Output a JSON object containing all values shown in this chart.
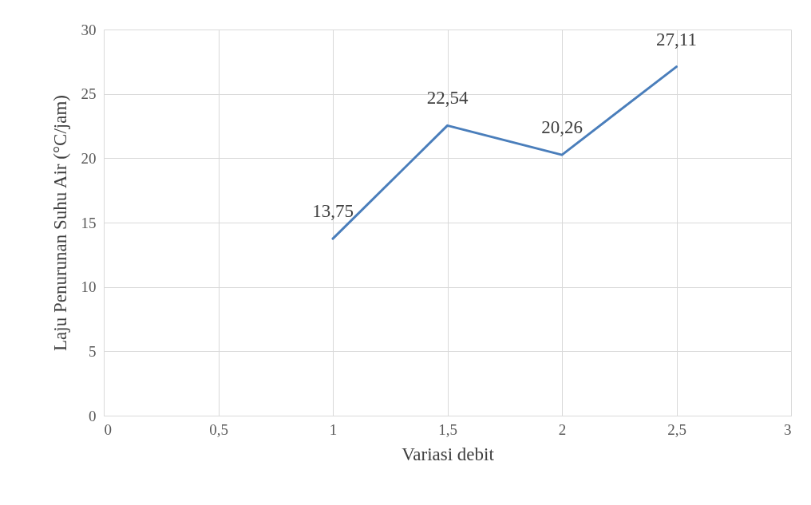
{
  "chart_data": {
    "type": "line",
    "xlabel": "Variasi debit",
    "ylabel": "Laju Penurunan Suhu Air (°C/jam)",
    "x": [
      1,
      1.5,
      2,
      2.5
    ],
    "series": [
      {
        "color": "#4a7ebb",
        "values": [
          13.75,
          22.54,
          20.26,
          27.11
        ],
        "value_labels": [
          "13,75",
          "22,54",
          "20,26",
          "27,11"
        ]
      }
    ],
    "xlim": [
      0,
      3
    ],
    "xticks": [
      0,
      {
        "value": 0.5,
        "label": "0,5"
      },
      1,
      {
        "value": 1.5,
        "label": "1,5"
      },
      2,
      {
        "value": 2.5,
        "label": "2,5"
      },
      3
    ],
    "ylim": [
      0,
      30
    ],
    "yticks": [
      0,
      5,
      10,
      15,
      20,
      25,
      30
    ],
    "grid": true,
    "marker": "none",
    "line_style": "solid"
  }
}
